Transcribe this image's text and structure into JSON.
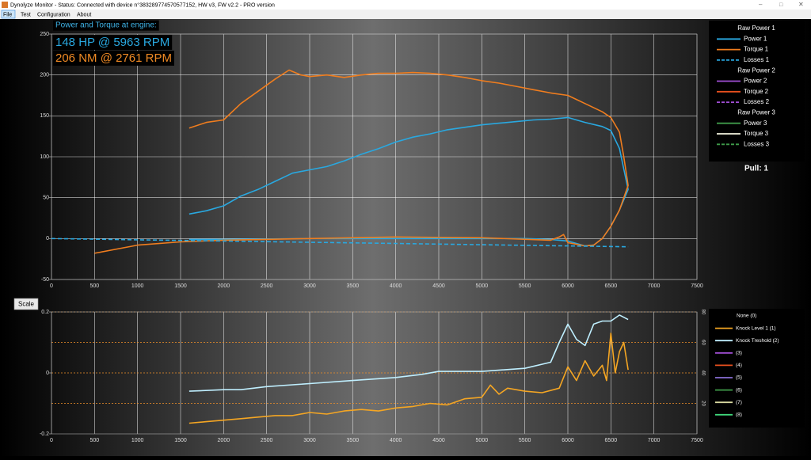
{
  "window": {
    "title": "Dynolyze Monitor - Status: Connected with device n°383289774570577152, HW v3, FW v2.2 - PRO version",
    "menu": [
      "File",
      "Test",
      "Configuration",
      "About"
    ],
    "pull_label": "Pull: 1"
  },
  "chart_data": [
    {
      "type": "line",
      "annotations": [
        {
          "text": "Power and Torque at engine:",
          "color": "#3fb4e8"
        },
        {
          "text": "148 HP @ 5963 RPM",
          "color": "#29a8e0"
        },
        {
          "text": "206 NM @ 2761 RPM",
          "color": "#f08a24"
        }
      ],
      "xlim": [
        0,
        7500
      ],
      "xticks": [
        0,
        500,
        1000,
        1500,
        2000,
        2500,
        3000,
        3500,
        4000,
        4500,
        5000,
        5500,
        6000,
        6500,
        7000,
        7500
      ],
      "ylim": [
        -50,
        250
      ],
      "yticks": [
        -50,
        0,
        50,
        100,
        150,
        200,
        250
      ],
      "grid": true,
      "series_groups": [
        {
          "title": "Raw Power 1",
          "series": [
            {
              "name": "Power 1",
              "color": "#29a8e0",
              "dash": false,
              "x": [
                1600,
                1800,
                2000,
                2200,
                2400,
                2600,
                2800,
                3000,
                3200,
                3400,
                3600,
                3800,
                4000,
                4200,
                4400,
                4600,
                4800,
                5000,
                5200,
                5400,
                5600,
                5800,
                6000,
                6200,
                6400,
                6500,
                6600,
                6650,
                6700,
                6600,
                6500,
                6400,
                6300,
                6200,
                6000,
                5800,
                5500,
                5000,
                4000,
                3000,
                2000,
                1600
              ],
              "values": [
                30,
                34,
                40,
                52,
                60,
                70,
                80,
                84,
                88,
                95,
                103,
                110,
                118,
                124,
                128,
                133,
                136,
                139,
                141,
                143,
                145,
                146,
                148,
                142,
                137,
                132,
                110,
                85,
                60,
                35,
                15,
                0,
                -8,
                -9,
                -3,
                -1,
                0,
                0,
                0,
                0,
                -1,
                -1
              ]
            },
            {
              "name": "Torque 1",
              "color": "#f07d1e",
              "dash": false,
              "x": [
                1600,
                1800,
                2000,
                2200,
                2400,
                2600,
                2761,
                2900,
                3000,
                3200,
                3400,
                3600,
                3800,
                4000,
                4200,
                4400,
                4600,
                4800,
                5000,
                5200,
                5400,
                5600,
                5800,
                6000,
                6200,
                6400,
                6500,
                6600,
                6650,
                6700,
                6600,
                6500,
                6400,
                6300,
                6200,
                6000,
                5950,
                5900,
                5800,
                5000,
                4000,
                3000,
                2000,
                1500,
                1000,
                500
              ],
              "values": [
                135,
                142,
                145,
                165,
                180,
                195,
                206,
                200,
                198,
                200,
                197,
                200,
                202,
                202,
                203,
                202,
                200,
                197,
                193,
                190,
                186,
                182,
                178,
                175,
                165,
                155,
                148,
                130,
                100,
                65,
                35,
                15,
                0,
                -8,
                -9,
                -5,
                5,
                2,
                -2,
                1,
                2,
                0,
                -2,
                -4,
                -8,
                -18
              ]
            },
            {
              "name": "Losses 1",
              "color": "#29a8e0",
              "dash": true,
              "x": [
                0,
                1000,
                2000,
                3000,
                4000,
                5000,
                6000,
                6700
              ],
              "values": [
                0,
                -1.5,
                -3,
                -4.5,
                -6,
                -7.5,
                -9,
                -10
              ]
            }
          ]
        },
        {
          "title": "Raw Power 2",
          "series": [
            {
              "name": "Power 2",
              "color": "#a24fd6",
              "dash": false,
              "x": [],
              "values": []
            },
            {
              "name": "Torque 2",
              "color": "#e8501e",
              "dash": false,
              "x": [],
              "values": []
            },
            {
              "name": "Losses 2",
              "color": "#a24fd6",
              "dash": true,
              "x": [],
              "values": []
            }
          ]
        },
        {
          "title": "Raw Power 3",
          "series": [
            {
              "name": "Power 3",
              "color": "#3f9b4a",
              "dash": false,
              "x": [],
              "values": []
            },
            {
              "name": "Torque 3",
              "color": "#f4f4e0",
              "dash": false,
              "x": [],
              "values": []
            },
            {
              "name": "Losses 3",
              "color": "#3f9b4a",
              "dash": true,
              "x": [],
              "values": []
            }
          ]
        }
      ]
    },
    {
      "type": "line",
      "button": "Scale",
      "xlim": [
        0,
        7500
      ],
      "xticks": [
        0,
        500,
        1000,
        1500,
        2000,
        2500,
        3000,
        3500,
        4000,
        4500,
        5000,
        5500,
        6000,
        6500,
        7000,
        7500
      ],
      "ylim": [
        -0.2,
        0.2
      ],
      "yticks": [
        -0.2,
        0,
        0.2
      ],
      "y2lim": [
        0,
        80
      ],
      "y2ticks": [
        20,
        40,
        60,
        80
      ],
      "grid": true,
      "series": [
        {
          "name": "None (0)",
          "x": [],
          "values": []
        },
        {
          "name": "Knock Level 1 (1)",
          "color": "#f5a623",
          "axis": "y2",
          "x": [
            1600,
            1800,
            2000,
            2200,
            2400,
            2600,
            2800,
            3000,
            3200,
            3400,
            3600,
            3800,
            4000,
            4200,
            4400,
            4600,
            4800,
            5000,
            5100,
            5200,
            5300,
            5500,
            5700,
            5900,
            6000,
            6100,
            6200,
            6300,
            6400,
            6450,
            6500,
            6550,
            6600,
            6650,
            6700
          ],
          "values": [
            7,
            8,
            9,
            10,
            11,
            12,
            12,
            14,
            13,
            15,
            16,
            15,
            17,
            18,
            20,
            19,
            23,
            24,
            32,
            26,
            30,
            28,
            27,
            30,
            44,
            35,
            48,
            38,
            45,
            35,
            66,
            40,
            54,
            60,
            42
          ]
        },
        {
          "name": "Knock Treshold (2)",
          "color": "#bfefff",
          "axis": "y2",
          "x": [
            1600,
            2000,
            2200,
            2500,
            3000,
            3500,
            4000,
            4300,
            4500,
            5000,
            5500,
            5800,
            5900,
            6000,
            6100,
            6200,
            6300,
            6400,
            6500,
            6600,
            6700
          ],
          "values": [
            28,
            29,
            29,
            31,
            33,
            35,
            37,
            39,
            41,
            41,
            43,
            47,
            60,
            72,
            62,
            58,
            72,
            74,
            74,
            78,
            75
          ]
        },
        {
          "name": "(3)",
          "color": "#a24fd6",
          "axis": "y2",
          "x": [],
          "values": []
        },
        {
          "name": "(4)",
          "color": "#e8501e",
          "axis": "y2",
          "x": [],
          "values": []
        },
        {
          "name": "(5)",
          "color": "#8a6fd6",
          "axis": "y2",
          "x": [],
          "values": []
        },
        {
          "name": "(6)",
          "color": "#3f9b4a",
          "axis": "y2",
          "x": [],
          "values": []
        },
        {
          "name": "(7)",
          "color": "#d8d8a0",
          "axis": "y2",
          "x": [],
          "values": []
        },
        {
          "name": "(8)",
          "color": "#3fd67a",
          "axis": "y2",
          "x": [],
          "values": []
        }
      ]
    }
  ]
}
